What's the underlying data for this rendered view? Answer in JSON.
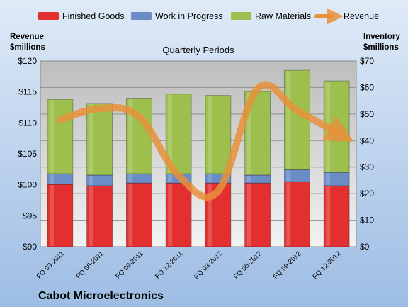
{
  "chart_data": {
    "type": "bar",
    "stacked": true,
    "title": "Quarterly Periods",
    "company": "Cabot Microelectronics",
    "y_left_label": [
      "Revenue",
      "$millions"
    ],
    "y_right_label": [
      "Inventory",
      "$millions"
    ],
    "legend_position": "top",
    "categories": [
      "FQ 03-2011",
      "FQ 06-2011",
      "FQ 09-2011",
      "FQ 12-2011",
      "FQ 03-2012",
      "FQ 06-2012",
      "FQ 09-2012",
      "FQ 12-2012"
    ],
    "series": [
      {
        "name": "Finished Goods",
        "axis": "right",
        "color": "#e32f2f",
        "values": [
          23.5,
          23.0,
          24.0,
          24.0,
          24.0,
          24.0,
          24.5,
          23.0
        ]
      },
      {
        "name": "Work in Progress",
        "axis": "right",
        "color": "#6a8cc7",
        "values": [
          4.0,
          4.0,
          3.5,
          3.5,
          3.5,
          3.0,
          4.5,
          5.0
        ]
      },
      {
        "name": "Raw Materials",
        "axis": "right",
        "color": "#9cbf4e",
        "values": [
          28.0,
          27.0,
          28.5,
          30.0,
          29.5,
          31.5,
          37.5,
          34.5
        ]
      },
      {
        "name": "Revenue",
        "axis": "left",
        "type": "line",
        "color": "#e8913a",
        "values": [
          110.5,
          112.3,
          111.0,
          101.5,
          99.0,
          115.5,
          112.0,
          108.5
        ]
      }
    ],
    "y_left": {
      "min": 90,
      "max": 120,
      "step": 5,
      "tick_labels": [
        "$90",
        "$95",
        "$100",
        "$105",
        "$110",
        "$115",
        "$120"
      ]
    },
    "y_right": {
      "min": 0,
      "max": 70,
      "step": 10,
      "tick_labels": [
        "$0",
        "$10",
        "$20",
        "$30",
        "$40",
        "$50",
        "$60",
        "$70"
      ]
    },
    "grid": true,
    "colors": {
      "plot_bg_top": "#bdbdbd",
      "plot_bg_bottom": "#f2f2f2",
      "page_bg_top": "#dfeaf7",
      "page_bg_bottom": "#9dbde4"
    }
  }
}
